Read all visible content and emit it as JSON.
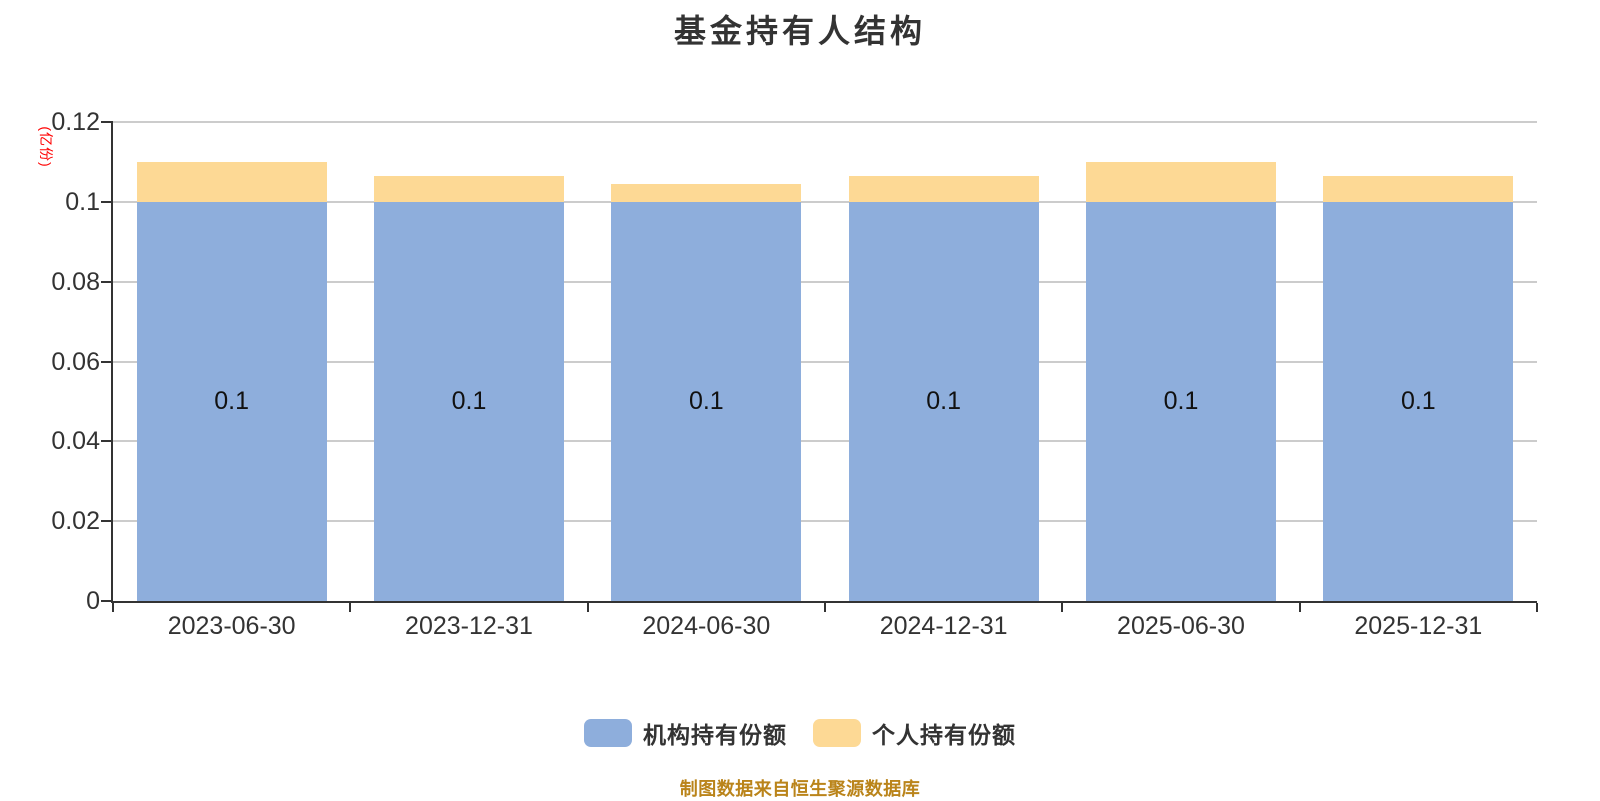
{
  "title": "基金持有人结构",
  "chart_data": {
    "type": "bar",
    "stacked": true,
    "categories": [
      "2023-06-30",
      "2023-12-31",
      "2024-06-30",
      "2024-12-31",
      "2025-06-30",
      "2025-12-31"
    ],
    "series": [
      {
        "name": "机构持有份额",
        "color": "#8EAEDC",
        "values": [
          0.1,
          0.1,
          0.1,
          0.1,
          0.1,
          0.1
        ],
        "labels": [
          "0.1",
          "0.1",
          "0.1",
          "0.1",
          "0.1",
          "0.1"
        ]
      },
      {
        "name": "个人持有份额",
        "color": "#FDD995",
        "values": [
          0.01,
          0.0065,
          0.0045,
          0.0065,
          0.01,
          0.0065
        ],
        "labels": [
          "",
          "",
          "",
          "",
          "",
          ""
        ]
      }
    ],
    "title": "基金持有人结构",
    "xlabel": "",
    "ylabel": "(亿份)",
    "ylim": [
      0,
      0.12
    ],
    "yticks": [
      0,
      0.02,
      0.04,
      0.06,
      0.08,
      0.1,
      0.12
    ],
    "ytick_labels": [
      "0",
      "0.02",
      "0.04",
      "0.06",
      "0.08",
      "0.1",
      "0.12"
    ],
    "grid": true,
    "legend_position": "bottom"
  },
  "legend": {
    "items": [
      {
        "label": "机构持有份额",
        "color": "#8EAEDC"
      },
      {
        "label": "个人持有份额",
        "color": "#FDD995"
      }
    ]
  },
  "footer": {
    "credit": "制图数据来自恒生聚源数据库"
  },
  "colors": {
    "institution_bar": "#8EAEDC",
    "individual_bar": "#FDD995",
    "axis": "#333333",
    "grid": "#CCCCCC",
    "title_text": "#333333",
    "tick_label": "#333333",
    "bar_label": "#111111",
    "y_unit_label": "#FF0000",
    "footer_text": "#BA841A"
  }
}
